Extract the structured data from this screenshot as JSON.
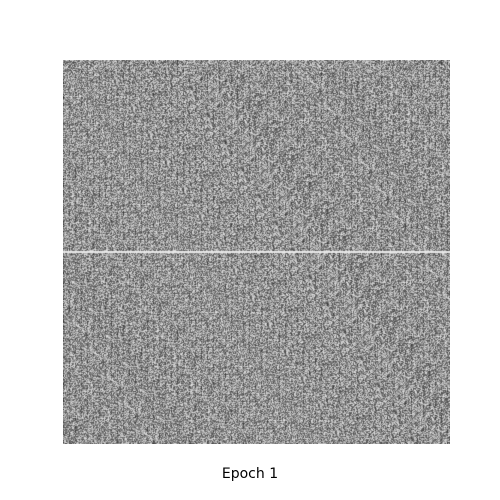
{
  "figure": {
    "caption": "Epoch 1",
    "grid_rows": 2,
    "grid_cols": 2,
    "colors": {
      "background": "#ffffff",
      "separator": "#e8e8e8",
      "caption_text": "#000000"
    }
  }
}
